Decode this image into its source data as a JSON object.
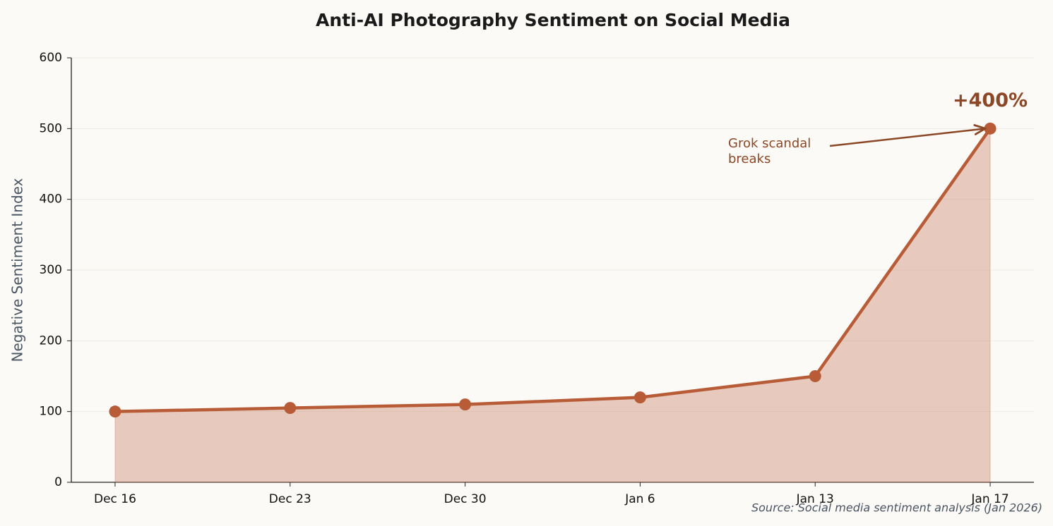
{
  "chart_data": {
    "type": "line",
    "title": "Anti-AI Photography Sentiment on Social Media",
    "y_label": "Negative Sentiment Index",
    "categories": [
      "Dec 16",
      "Dec 23",
      "Dec 30",
      "Jan 6",
      "Jan 13",
      "Jan 17"
    ],
    "series": [
      {
        "name": "Negative Sentiment Index",
        "color": "#b85c38",
        "values": [
          100,
          105,
          110,
          120,
          150,
          500
        ]
      }
    ],
    "area": true,
    "ylim": [
      0,
      600
    ],
    "yticks": [
      0,
      100,
      200,
      300,
      400,
      500,
      600
    ],
    "grid": true,
    "annotations": [
      {
        "text": "+400%"
      },
      {
        "lines": [
          "Grok scandal",
          "breaks"
        ]
      }
    ],
    "source": "Source: Social media sentiment analysis (Jan 2026)"
  }
}
